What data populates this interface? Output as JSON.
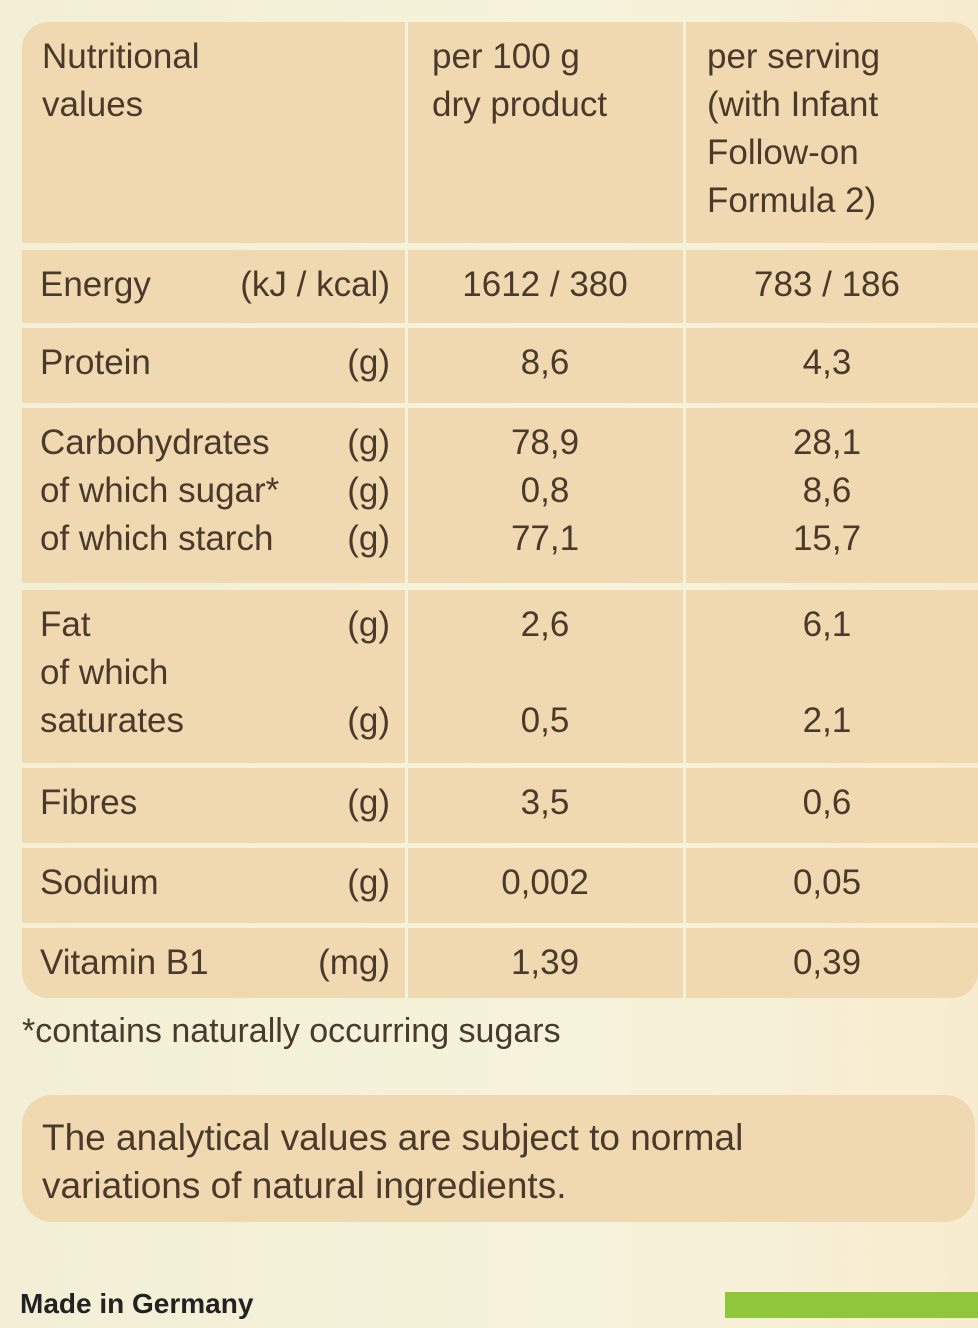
{
  "table": {
    "header": [
      [
        "Nutritional",
        "values"
      ],
      [
        "per 100 g",
        "dry product"
      ],
      [
        "per serving",
        "(with Infant",
        "Follow-on",
        "Formula 2)"
      ]
    ],
    "rows": [
      [
        {
          "label": "Energy",
          "unit": "(kJ / kcal)",
          "per_100g": "1612 / 380",
          "per_serving": "783 / 186"
        }
      ],
      [
        {
          "label": "Protein",
          "unit": "(g)",
          "per_100g": "8,6",
          "per_serving": "4,3"
        }
      ],
      [
        {
          "label": "Carbohydrates",
          "unit": "(g)",
          "per_100g": "78,9",
          "per_serving": "28,1"
        },
        {
          "label": "of which sugar*",
          "unit": "(g)",
          "per_100g": "0,8",
          "per_serving": "8,6"
        },
        {
          "label": "of which starch",
          "unit": "(g)",
          "per_100g": "77,1",
          "per_serving": "15,7"
        }
      ],
      [
        {
          "label": "Fat",
          "unit": "(g)",
          "per_100g": "2,6",
          "per_serving": "6,1"
        },
        {
          "label": "of which"
        },
        {
          "label": "saturates",
          "unit": "(g)",
          "per_100g": "0,5",
          "per_serving": "2,1"
        }
      ],
      [
        {
          "label": "Fibres",
          "unit": "(g)",
          "per_100g": "3,5",
          "per_serving": "0,6"
        }
      ],
      [
        {
          "label": "Sodium",
          "unit": "(g)",
          "per_100g": "0,002",
          "per_serving": "0,05"
        }
      ],
      [
        {
          "label": "Vitamin B1",
          "unit": "(mg)",
          "per_100g": "1,39",
          "per_serving": "0,39"
        }
      ]
    ]
  },
  "footnote": "*contains naturally occurring sugars",
  "note": {
    "lines": [
      "The analytical values are subject to normal",
      "variations of natural ingredients."
    ]
  },
  "footer": "Made in Germany"
}
